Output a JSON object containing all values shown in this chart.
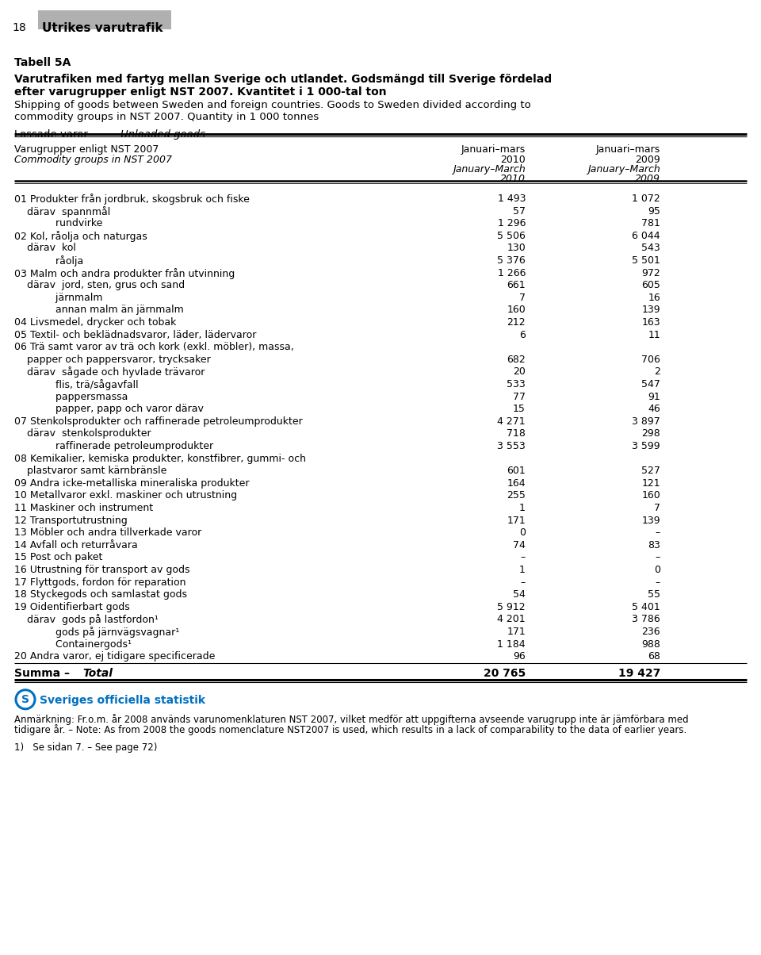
{
  "page_number": "18",
  "page_header": "Utrikes varutrafik",
  "table_title_bold": "Tabell 5A",
  "table_title_line1_bold": "Varutrafiken med fartyg mellan Sverige och utlandet. Godsmängd till Sverige fördelad",
  "table_title_line2_bold": "efter varugrupper enligt NST 2007. Kvantitet i 1 000-tal ton",
  "table_title_line3": "Shipping of goods between Sweden and foreign countries. Goods to Sweden divided according to",
  "table_title_line4": "commodity groups in NST 2007. Quantity in 1 000 tonnes",
  "col_header_left1": "Varugrupper enligt NST 2007",
  "col_header_left2": "Commodity groups in NST 2007",
  "col_header_c1_l1": "Januari–mars",
  "col_header_c1_l2": "2010",
  "col_header_c1_l3": "January–March",
  "col_header_c1_l4": "2010",
  "col_header_c2_l1": "Januari–mars",
  "col_header_c2_l2": "2009",
  "col_header_c2_l3": "January–March",
  "col_header_c2_l4": "2009",
  "rows": [
    {
      "label": "01 Produkter från jordbruk, skogsbruk och fiske",
      "v2010": "1 493",
      "v2009": "1 072"
    },
    {
      "label": "    därav  spannmål",
      "v2010": "57",
      "v2009": "95"
    },
    {
      "label": "             rundvirke",
      "v2010": "1 296",
      "v2009": "781"
    },
    {
      "label": "02 Kol, råolja och naturgas",
      "v2010": "5 506",
      "v2009": "6 044"
    },
    {
      "label": "    därav  kol",
      "v2010": "130",
      "v2009": "543"
    },
    {
      "label": "             råolja",
      "v2010": "5 376",
      "v2009": "5 501"
    },
    {
      "label": "03 Malm och andra produkter från utvinning",
      "v2010": "1 266",
      "v2009": "972"
    },
    {
      "label": "    därav  jord, sten, grus och sand",
      "v2010": "661",
      "v2009": "605"
    },
    {
      "label": "             järnmalm",
      "v2010": "7",
      "v2009": "16"
    },
    {
      "label": "             annan malm än järnmalm",
      "v2010": "160",
      "v2009": "139"
    },
    {
      "label": "04 Livsmedel, drycker och tobak",
      "v2010": "212",
      "v2009": "163"
    },
    {
      "label": "05 Textil- och beklädnadsvaror, läder, lädervaror",
      "v2010": "6",
      "v2009": "11"
    },
    {
      "label": "06 Trä samt varor av trä och kork (exkl. möbler), massa,",
      "v2010": "",
      "v2009": ""
    },
    {
      "label": "    papper och pappersvaror, trycksaker",
      "v2010": "682",
      "v2009": "706"
    },
    {
      "label": "    därav  sågade och hyvlade trävaror",
      "v2010": "20",
      "v2009": "2"
    },
    {
      "label": "             flis, trä/sågavfall",
      "v2010": "533",
      "v2009": "547"
    },
    {
      "label": "             pappersmassa",
      "v2010": "77",
      "v2009": "91"
    },
    {
      "label": "             papper, papp och varor därav",
      "v2010": "15",
      "v2009": "46"
    },
    {
      "label": "07 Stenkolsprodukter och raffinerade petroleumprodukter",
      "v2010": "4 271",
      "v2009": "3 897"
    },
    {
      "label": "    därav  stenkolsprodukter",
      "v2010": "718",
      "v2009": "298"
    },
    {
      "label": "             raffinerade petroleumprodukter",
      "v2010": "3 553",
      "v2009": "3 599"
    },
    {
      "label": "08 Kemikalier, kemiska produkter, konstfibrer, gummi- och",
      "v2010": "",
      "v2009": ""
    },
    {
      "label": "    plastvaror samt kärnbränsle",
      "v2010": "601",
      "v2009": "527"
    },
    {
      "label": "09 Andra icke-metalliska mineraliska produkter",
      "v2010": "164",
      "v2009": "121"
    },
    {
      "label": "10 Metallvaror exkl. maskiner och utrustning",
      "v2010": "255",
      "v2009": "160"
    },
    {
      "label": "11 Maskiner och instrument",
      "v2010": "1",
      "v2009": "7"
    },
    {
      "label": "12 Transportutrustning",
      "v2010": "171",
      "v2009": "139"
    },
    {
      "label": "13 Möbler och andra tillverkade varor",
      "v2010": "0",
      "v2009": "–"
    },
    {
      "label": "14 Avfall och returråvara",
      "v2010": "74",
      "v2009": "83"
    },
    {
      "label": "15 Post och paket",
      "v2010": "–",
      "v2009": "–"
    },
    {
      "label": "16 Utrustning för transport av gods",
      "v2010": "1",
      "v2009": "0"
    },
    {
      "label": "17 Flyttgods, fordon för reparation",
      "v2010": "–",
      "v2009": "–"
    },
    {
      "label": "18 Styckegods och samlastat gods",
      "v2010": "54",
      "v2009": "55"
    },
    {
      "label": "19 Oidentifierbart gods",
      "v2010": "5 912",
      "v2009": "5 401"
    },
    {
      "label": "    därav  gods på lastfordon¹",
      "v2010": "4 201",
      "v2009": "3 786"
    },
    {
      "label": "             gods på järnvägsvagnar¹",
      "v2010": "171",
      "v2009": "236"
    },
    {
      "label": "             Containergods¹",
      "v2010": "1 184",
      "v2009": "988"
    },
    {
      "label": "20 Andra varor, ej tidigare specificerade",
      "v2010": "96",
      "v2009": "68"
    }
  ],
  "total_2010": "20 765",
  "total_2009": "19 427",
  "footnote_anm": "Anmärkning: Fr.o.m. år 2008 används varunomenklaturen NST 2007, vilket medför att uppgifterna avseende varugrupp inte är jämförbara med",
  "footnote_anm2": "tidigare år. – Note: As from 2008 the goods nomenclature NST2007 is used, which results in a lack of comparability to the data of earlier years.",
  "footnote_1": "1)   Se sidan 7. – See page 72)",
  "sos_text": "Sveriges officiella statistik",
  "sos_color": "#0070C0",
  "bg_color": "#ffffff",
  "header_bg": "#b0b0b0"
}
